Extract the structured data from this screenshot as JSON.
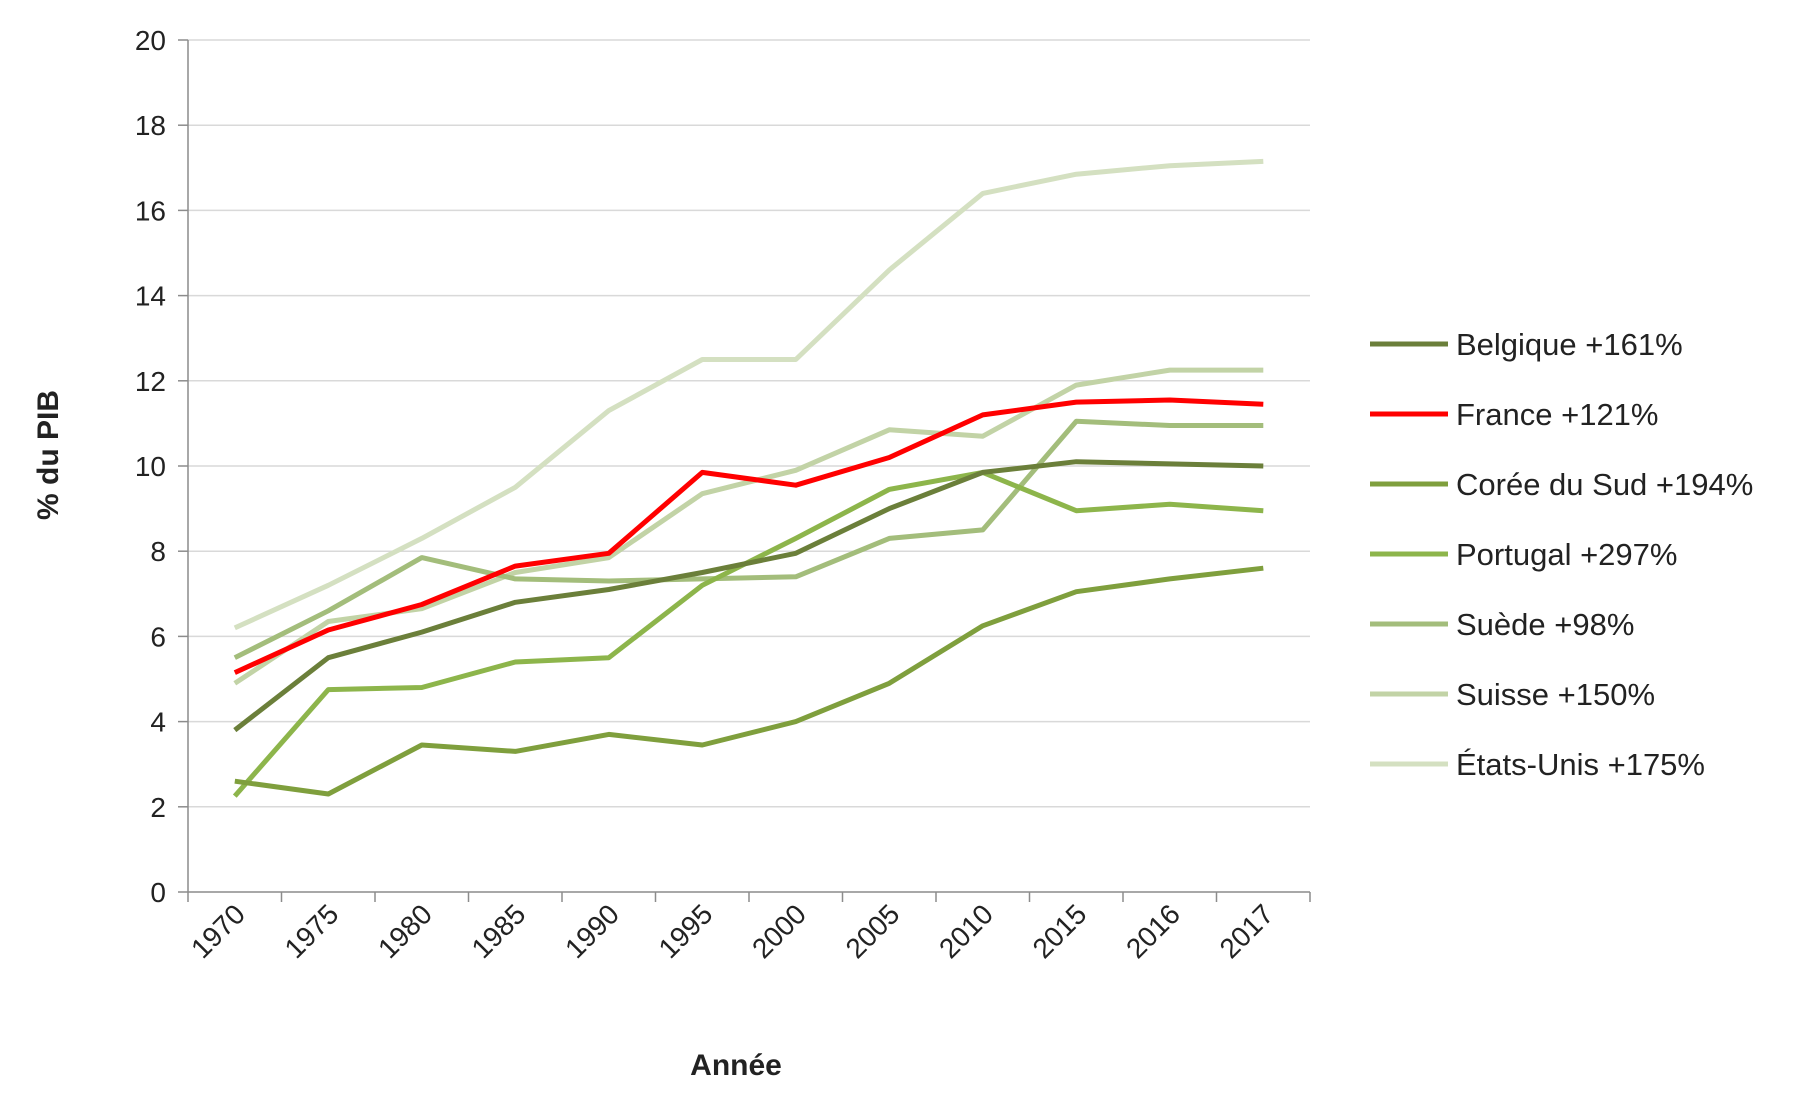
{
  "chart_data": {
    "type": "line",
    "title": "",
    "xlabel": "Année",
    "ylabel": "% du PIB",
    "categories": [
      "1970",
      "1975",
      "1980",
      "1985",
      "1990",
      "1995",
      "2000",
      "2005",
      "2010",
      "2015",
      "2016",
      "2017"
    ],
    "ylim": [
      0,
      20
    ],
    "yticks": [
      "0",
      "2",
      "4",
      "6",
      "8",
      "10",
      "12",
      "14",
      "16",
      "18",
      "20"
    ],
    "grid": "horizontal",
    "legend_position": "right",
    "series": [
      {
        "name": "Belgique +161%",
        "color": "#6b7f3a",
        "values": [
          3.8,
          5.5,
          6.1,
          6.8,
          7.1,
          7.5,
          7.95,
          9.0,
          9.85,
          10.1,
          10.05,
          10.0
        ]
      },
      {
        "name": "France +121%",
        "color": "#ff0000",
        "values": [
          5.15,
          6.15,
          6.75,
          7.65,
          7.95,
          9.85,
          9.55,
          10.2,
          11.2,
          11.5,
          11.55,
          11.45
        ]
      },
      {
        "name": "Corée du Sud +194%",
        "color": "#7f9f3d",
        "values": [
          2.6,
          2.3,
          3.45,
          3.3,
          3.7,
          3.45,
          4.0,
          4.9,
          6.25,
          7.05,
          7.35,
          7.6
        ]
      },
      {
        "name": "Portugal +297%",
        "color": "#8db54b",
        "values": [
          2.25,
          4.75,
          4.8,
          5.4,
          5.5,
          7.2,
          8.3,
          9.45,
          9.85,
          8.95,
          9.1,
          8.95
        ]
      },
      {
        "name": "Suède +98%",
        "color": "#a3bd7b",
        "values": [
          5.5,
          6.6,
          7.85,
          7.35,
          7.3,
          7.35,
          7.4,
          8.3,
          8.5,
          11.05,
          10.95,
          10.95
        ]
      },
      {
        "name": "Suisse +150%",
        "color": "#c2d3a6",
        "values": [
          4.9,
          6.35,
          6.65,
          7.5,
          7.85,
          9.35,
          9.9,
          10.85,
          10.7,
          11.9,
          12.25,
          12.25
        ]
      },
      {
        "name": "États-Unis +175%",
        "color": "#d4e0c1",
        "values": [
          6.2,
          7.2,
          8.3,
          9.5,
          11.3,
          12.5,
          12.5,
          14.6,
          16.4,
          16.85,
          17.05,
          17.15
        ]
      }
    ]
  }
}
